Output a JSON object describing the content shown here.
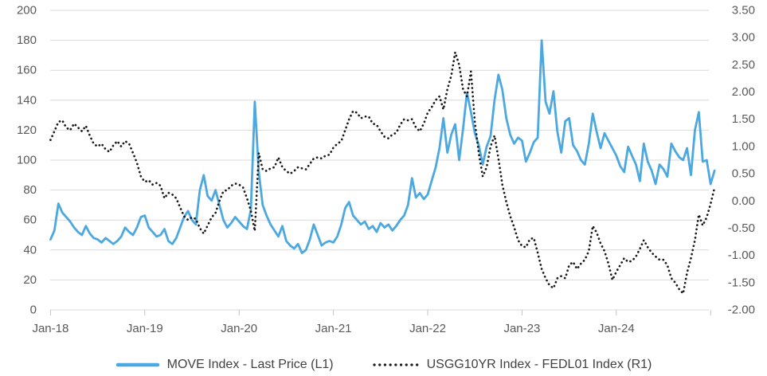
{
  "chart_data": {
    "type": "line",
    "title": "",
    "xlabel": "",
    "ylabel_left": "",
    "ylabel_right": "",
    "grid": true,
    "legend_position": "bottom",
    "x_unit": "half-month steps starting Jan-2018 (24 points per year)",
    "points_per_year": 24,
    "x_start_year": 2018,
    "x_tick_labels": [
      "Jan-18",
      "Jan-19",
      "Jan-20",
      "Jan-21",
      "Jan-22",
      "Jan-23",
      "Jan-24"
    ],
    "left_axis": {
      "min": 0,
      "max": 200,
      "step": 20,
      "tick_labels": [
        "200",
        "180",
        "160",
        "140",
        "120",
        "100",
        "80",
        "60",
        "40",
        "20",
        "0"
      ]
    },
    "right_axis": {
      "min": -2.0,
      "max": 3.5,
      "step": 0.5,
      "tick_labels": [
        "3.50",
        "3.00",
        "2.50",
        "2.00",
        "1.50",
        "1.00",
        "0.50",
        "0.00",
        "-0.50",
        "-1.00",
        "-1.50",
        "-2.00"
      ]
    },
    "colors": {
      "move_line": "#4BA8E0",
      "spread_dots": "#1A1A1A",
      "gridline": "#D9D9D9",
      "axis_tick": "#C4C4C4",
      "axis_label": "#595959",
      "legend_text": "#404040"
    },
    "series": [
      {
        "name": "MOVE Index - Last Price (L1)",
        "axis": "left",
        "style": "solid",
        "values": [
          47,
          53,
          71,
          65,
          62,
          59,
          55,
          52,
          50,
          56,
          51,
          48,
          47,
          45,
          48,
          46,
          44,
          46,
          49,
          55,
          52,
          50,
          55,
          62,
          63,
          55,
          52,
          49,
          50,
          54,
          46,
          44,
          48,
          55,
          62,
          66,
          60,
          57,
          80,
          90,
          76,
          73,
          80,
          70,
          60,
          55,
          58,
          62,
          59,
          56,
          54,
          67,
          139,
          92,
          70,
          63,
          57,
          53,
          49,
          56,
          46,
          43,
          41,
          44,
          38,
          40,
          47,
          57,
          50,
          43,
          45,
          46,
          45,
          49,
          57,
          68,
          72,
          63,
          60,
          57,
          59,
          54,
          56,
          52,
          58,
          55,
          57,
          53,
          56,
          60,
          63,
          70,
          88,
          75,
          78,
          74,
          77,
          86,
          95,
          108,
          128,
          105,
          117,
          124,
          100,
          121,
          145,
          132,
          118,
          110,
          97,
          109,
          116,
          140,
          157,
          147,
          128,
          117,
          111,
          115,
          113,
          99,
          105,
          112,
          115,
          180,
          139,
          131,
          146,
          119,
          105,
          126,
          128,
          110,
          106,
          100,
          97,
          111,
          131,
          119,
          108,
          118,
          113,
          108,
          103,
          96,
          92,
          109,
          103,
          97,
          86,
          111,
          99,
          93,
          84,
          97,
          94,
          89,
          111,
          106,
          102,
          100,
          108,
          90,
          120,
          132,
          99,
          100,
          84,
          93
        ]
      },
      {
        "name": "USGG10YR Index - FEDL01 Index (R1)",
        "axis": "right",
        "style": "dotted",
        "values": [
          1.12,
          1.28,
          1.45,
          1.48,
          1.35,
          1.3,
          1.42,
          1.35,
          1.28,
          1.38,
          1.2,
          1.05,
          1.0,
          1.05,
          0.95,
          0.9,
          1.02,
          1.1,
          1.0,
          1.1,
          1.05,
          0.88,
          0.7,
          0.45,
          0.35,
          0.38,
          0.3,
          0.33,
          0.28,
          0.05,
          0.15,
          0.12,
          0.05,
          -0.12,
          -0.28,
          -0.35,
          -0.3,
          -0.33,
          -0.5,
          -0.6,
          -0.45,
          -0.3,
          -0.22,
          0.0,
          0.18,
          0.2,
          0.28,
          0.32,
          0.3,
          0.25,
          0.05,
          -0.18,
          -0.55,
          0.88,
          0.58,
          0.55,
          0.6,
          0.62,
          0.8,
          0.62,
          0.55,
          0.5,
          0.55,
          0.62,
          0.6,
          0.58,
          0.68,
          0.78,
          0.8,
          0.78,
          0.83,
          0.85,
          0.98,
          1.05,
          1.1,
          1.3,
          1.5,
          1.65,
          1.62,
          1.52,
          1.55,
          1.55,
          1.42,
          1.4,
          1.28,
          1.18,
          1.15,
          1.22,
          1.25,
          1.4,
          1.5,
          1.48,
          1.5,
          1.35,
          1.28,
          1.42,
          1.62,
          1.72,
          1.85,
          1.92,
          1.68,
          2.05,
          2.3,
          2.73,
          2.5,
          2.05,
          1.92,
          2.38,
          1.45,
          0.88,
          0.45,
          0.62,
          1.0,
          1.2,
          0.78,
          0.3,
          -0.02,
          -0.28,
          -0.48,
          -0.72,
          -0.83,
          -0.85,
          -0.7,
          -0.68,
          -0.95,
          -1.25,
          -1.42,
          -1.55,
          -1.6,
          -1.42,
          -1.38,
          -1.42,
          -1.18,
          -1.12,
          -1.25,
          -1.15,
          -1.08,
          -0.92,
          -0.46,
          -0.58,
          -0.78,
          -0.92,
          -1.15,
          -1.45,
          -1.3,
          -1.18,
          -1.05,
          -1.12,
          -1.1,
          -1.02,
          -0.88,
          -0.72,
          -0.85,
          -0.95,
          -1.02,
          -1.08,
          -1.08,
          -1.18,
          -1.42,
          -1.5,
          -1.62,
          -1.7,
          -1.32,
          -1.05,
          -0.72,
          -0.25,
          -0.45,
          -0.3,
          -0.05,
          0.24
        ]
      }
    ]
  },
  "legend": {
    "move_label": "MOVE Index - Last Price (L1)",
    "spread_label": "USGG10YR Index - FEDL01 Index (R1)"
  }
}
